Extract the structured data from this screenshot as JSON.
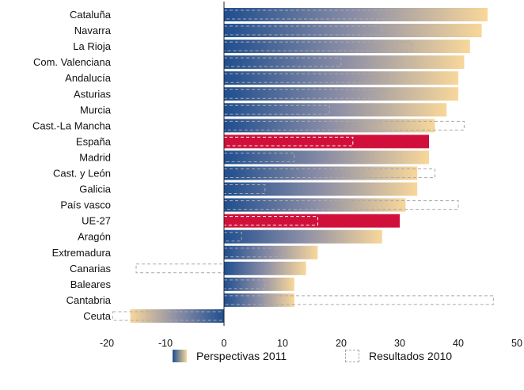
{
  "chart_data": {
    "type": "bar",
    "orientation": "horizontal",
    "categories": [
      "Cataluña",
      "Navarra",
      "La Rioja",
      "Com. Valenciana",
      "Andalucía",
      "Asturias",
      "Murcia",
      "Cast.-La Mancha",
      "España",
      "Madrid",
      "Cast. y León",
      "Galicia",
      "País vasco",
      "UE-27",
      "Aragón",
      "Extremadura",
      "Canarias",
      "Baleares",
      "Cantabria",
      "Ceuta"
    ],
    "series": [
      {
        "name": "Perspectivas 2011",
        "style": "gradient",
        "values": [
          45,
          44,
          42,
          41,
          40,
          40,
          38,
          36,
          35,
          35,
          33,
          33,
          31,
          30,
          27,
          16,
          14,
          12,
          12,
          -16
        ]
      },
      {
        "name": "Resultados 2010",
        "style": "dashed-outline",
        "values": [
          30,
          27,
          32,
          20,
          28,
          26,
          18,
          41,
          22,
          12,
          36,
          7,
          40,
          16,
          3,
          10,
          -15,
          7,
          46,
          -19
        ]
      }
    ],
    "highlighted": [
      "España",
      "UE-27"
    ],
    "xlim": [
      -20,
      50
    ],
    "xticks": [
      -20,
      -10,
      0,
      10,
      20,
      30,
      40,
      50
    ],
    "xlabel": "",
    "ylabel": "",
    "grid": false,
    "legend_position": "bottom",
    "colors": {
      "gradient_start": "#1f4e8f",
      "gradient_end": "#f8d79a",
      "highlight": "#d0103a",
      "dashed": "#aaaaaa"
    }
  },
  "legend": {
    "perspectivas_label": "Perspectivas 2011",
    "resultados_label": "Resultados 2010"
  }
}
